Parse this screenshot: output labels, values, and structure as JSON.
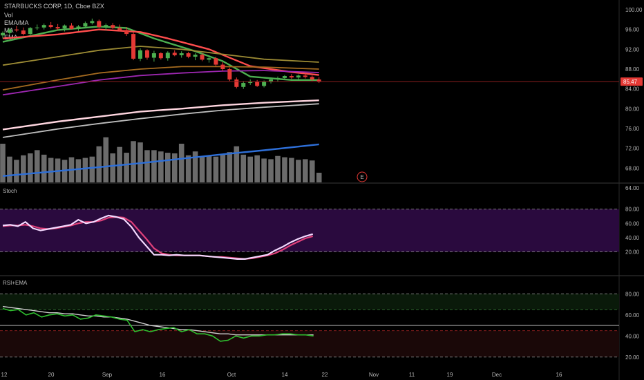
{
  "legend": {
    "title": "STARBUCKS CORP, 1D, Cboe BZX",
    "vol": "Vol",
    "ema_ma": "EMA/MA",
    "ma": "MA",
    "ema": "EMA"
  },
  "colors": {
    "up": "#4caf50",
    "down": "#e53935",
    "ema_red": "#ff4d4d",
    "ema_green": "#4caf50",
    "ma_olive": "#9b8a34",
    "ma_orange": "#a46a1f",
    "ma_purple": "#9c27b0",
    "ma_pink": "#ffd6e0",
    "ma_grey": "#bdbdbd",
    "ma_blue": "#2e6fd8",
    "volume": "#6b6b6b",
    "stoch_k": "#f4d9ff",
    "stoch_d": "#e0407a",
    "stoch_band": "#2a0a3e",
    "rsi": "#2fbf2f",
    "rsi_ema": "#cfcfcf"
  },
  "chart_data": [
    {
      "type": "candlestick",
      "title": "STARBUCKS CORP, 1D, Cboe BZX",
      "ylim": [
        64,
        100
      ],
      "y_ticks": [
        "100.00",
        "96.00",
        "92.00",
        "88.00",
        "84.00",
        "80.00",
        "76.00",
        "72.00",
        "68.00",
        "64.00"
      ],
      "last_price": "85.47",
      "x_ticks": [
        "12",
        "20",
        "Sep",
        "16",
        "Oct",
        "14",
        "22",
        "Nov",
        "11",
        "19",
        "Dec",
        "16"
      ],
      "candles": [
        {
          "o": 94.8,
          "h": 95.6,
          "l": 94.2,
          "c": 95.3
        },
        {
          "o": 95.3,
          "h": 96.3,
          "l": 94.9,
          "c": 96.0
        },
        {
          "o": 96.0,
          "h": 96.7,
          "l": 95.5,
          "c": 95.8
        },
        {
          "o": 95.8,
          "h": 96.4,
          "l": 94.8,
          "c": 95.1
        },
        {
          "o": 95.1,
          "h": 96.5,
          "l": 94.9,
          "c": 96.3
        },
        {
          "o": 96.3,
          "h": 97.0,
          "l": 95.9,
          "c": 96.4
        },
        {
          "o": 96.4,
          "h": 97.2,
          "l": 96.0,
          "c": 96.9
        },
        {
          "o": 96.9,
          "h": 97.5,
          "l": 96.2,
          "c": 96.5
        },
        {
          "o": 96.5,
          "h": 97.1,
          "l": 95.8,
          "c": 96.2
        },
        {
          "o": 96.2,
          "h": 97.0,
          "l": 95.6,
          "c": 96.8
        },
        {
          "o": 96.8,
          "h": 97.3,
          "l": 96.0,
          "c": 96.1
        },
        {
          "o": 96.1,
          "h": 96.9,
          "l": 95.7,
          "c": 96.6
        },
        {
          "o": 96.6,
          "h": 97.6,
          "l": 96.4,
          "c": 97.3
        },
        {
          "o": 97.3,
          "h": 98.2,
          "l": 97.0,
          "c": 97.7
        },
        {
          "o": 97.7,
          "h": 98.0,
          "l": 96.3,
          "c": 96.5
        },
        {
          "o": 96.5,
          "h": 97.2,
          "l": 95.8,
          "c": 96.9
        },
        {
          "o": 96.9,
          "h": 97.3,
          "l": 96.1,
          "c": 96.3
        },
        {
          "o": 96.3,
          "h": 97.0,
          "l": 95.6,
          "c": 95.9
        },
        {
          "o": 95.9,
          "h": 96.5,
          "l": 94.7,
          "c": 95.1
        },
        {
          "o": 95.1,
          "h": 95.4,
          "l": 89.8,
          "c": 90.1
        },
        {
          "o": 90.1,
          "h": 92.2,
          "l": 89.6,
          "c": 91.8
        },
        {
          "o": 91.8,
          "h": 92.0,
          "l": 89.9,
          "c": 90.3
        },
        {
          "o": 90.3,
          "h": 91.7,
          "l": 89.5,
          "c": 91.2
        },
        {
          "o": 91.2,
          "h": 91.4,
          "l": 89.9,
          "c": 90.2
        },
        {
          "o": 90.2,
          "h": 91.6,
          "l": 89.7,
          "c": 91.3
        },
        {
          "o": 91.3,
          "h": 91.8,
          "l": 90.6,
          "c": 90.8
        },
        {
          "o": 90.8,
          "h": 91.6,
          "l": 90.3,
          "c": 91.2
        },
        {
          "o": 91.2,
          "h": 91.5,
          "l": 90.2,
          "c": 90.5
        },
        {
          "o": 90.5,
          "h": 91.2,
          "l": 89.8,
          "c": 90.9
        },
        {
          "o": 90.9,
          "h": 91.2,
          "l": 89.6,
          "c": 89.9
        },
        {
          "o": 89.9,
          "h": 90.6,
          "l": 89.3,
          "c": 90.2
        },
        {
          "o": 90.2,
          "h": 90.5,
          "l": 88.6,
          "c": 88.9
        },
        {
          "o": 88.9,
          "h": 89.4,
          "l": 87.6,
          "c": 88.0
        },
        {
          "o": 88.0,
          "h": 88.3,
          "l": 85.6,
          "c": 85.9
        },
        {
          "o": 85.9,
          "h": 86.3,
          "l": 84.1,
          "c": 84.4
        },
        {
          "o": 84.4,
          "h": 85.6,
          "l": 84.0,
          "c": 85.2
        },
        {
          "o": 85.2,
          "h": 85.9,
          "l": 84.8,
          "c": 85.4
        },
        {
          "o": 85.4,
          "h": 85.8,
          "l": 84.4,
          "c": 84.6
        },
        {
          "o": 84.6,
          "h": 85.7,
          "l": 84.3,
          "c": 85.5
        },
        {
          "o": 85.5,
          "h": 86.3,
          "l": 85.1,
          "c": 85.9
        },
        {
          "o": 85.9,
          "h": 86.5,
          "l": 85.4,
          "c": 86.2
        },
        {
          "o": 86.2,
          "h": 86.8,
          "l": 85.8,
          "c": 86.6
        },
        {
          "o": 86.6,
          "h": 87.0,
          "l": 86.0,
          "c": 86.3
        },
        {
          "o": 86.3,
          "h": 86.9,
          "l": 85.7,
          "c": 86.7
        },
        {
          "o": 86.7,
          "h": 87.1,
          "l": 86.1,
          "c": 86.4
        },
        {
          "o": 86.4,
          "h": 86.7,
          "l": 85.6,
          "c": 85.9
        },
        {
          "o": 85.9,
          "h": 86.4,
          "l": 85.2,
          "c": 85.5
        }
      ],
      "volume": [
        6.0,
        4.0,
        3.5,
        4.2,
        4.5,
        5.0,
        4.3,
        3.8,
        3.7,
        3.5,
        3.9,
        3.6,
        3.8,
        4.0,
        5.6,
        7.0,
        4.5,
        5.5,
        4.6,
        6.4,
        6.2,
        5.0,
        5.0,
        4.8,
        4.6,
        4.5,
        6.0,
        4.2,
        4.8,
        4.0,
        4.1,
        4.0,
        4.4,
        4.7,
        5.6,
        4.3,
        4.0,
        4.2,
        3.7,
        3.6,
        4.1,
        3.9,
        3.8,
        3.5,
        3.6,
        3.4,
        1.5
      ],
      "overlays": [
        {
          "name": "EMA short",
          "color": "#4caf50",
          "points": [
            [
              0,
              93.5
            ],
            [
              8,
              95.9
            ],
            [
              14,
              96.6
            ],
            [
              18,
              96.3
            ],
            [
              22,
              94.2
            ],
            [
              28,
              91.6
            ],
            [
              32,
              89.6
            ],
            [
              36,
              86.5
            ],
            [
              42,
              85.8
            ],
            [
              46,
              85.8
            ]
          ]
        },
        {
          "name": "EMA medium",
          "color": "#ff4d4d",
          "points": [
            [
              0,
              94.2
            ],
            [
              8,
              95.0
            ],
            [
              14,
              96.0
            ],
            [
              20,
              95.5
            ],
            [
              24,
              94.2
            ],
            [
              30,
              92.0
            ],
            [
              36,
              88.6
            ],
            [
              42,
              87.4
            ],
            [
              46,
              86.8
            ]
          ]
        },
        {
          "name": "MA olive",
          "color": "#9b8a34",
          "points": [
            [
              0,
              88.8
            ],
            [
              8,
              90.5
            ],
            [
              14,
              91.8
            ],
            [
              20,
              92.6
            ],
            [
              26,
              92.0
            ],
            [
              32,
              91.0
            ],
            [
              38,
              90.0
            ],
            [
              46,
              89.4
            ]
          ]
        },
        {
          "name": "MA orange",
          "color": "#a46a1f",
          "points": [
            [
              0,
              83.8
            ],
            [
              8,
              85.8
            ],
            [
              14,
              87.2
            ],
            [
              20,
              88.0
            ],
            [
              26,
              88.5
            ],
            [
              32,
              88.5
            ],
            [
              38,
              88.4
            ],
            [
              46,
              88.0
            ]
          ]
        },
        {
          "name": "MA purple",
          "color": "#9c27b0",
          "points": [
            [
              0,
              82.8
            ],
            [
              8,
              84.5
            ],
            [
              14,
              85.8
            ],
            [
              20,
              86.7
            ],
            [
              26,
              87.2
            ],
            [
              32,
              87.6
            ],
            [
              38,
              87.7
            ],
            [
              46,
              87.3
            ]
          ]
        },
        {
          "name": "MA pink",
          "color": "#ffd6e0",
          "points": [
            [
              0,
              75.8
            ],
            [
              8,
              77.4
            ],
            [
              14,
              78.4
            ],
            [
              20,
              79.4
            ],
            [
              26,
              80.0
            ],
            [
              32,
              80.7
            ],
            [
              38,
              81.2
            ],
            [
              46,
              81.7
            ]
          ]
        },
        {
          "name": "MA grey",
          "color": "#bdbdbd",
          "points": [
            [
              0,
              74.2
            ],
            [
              8,
              75.9
            ],
            [
              14,
              77.0
            ],
            [
              20,
              78.0
            ],
            [
              26,
              78.9
            ],
            [
              32,
              79.7
            ],
            [
              38,
              80.3
            ],
            [
              46,
              81.0
            ]
          ]
        },
        {
          "name": "MA blue",
          "color": "#2e6fd8",
          "points": [
            [
              0,
              66.4
            ],
            [
              8,
              67.4
            ],
            [
              14,
              68.2
            ],
            [
              20,
              69.0
            ],
            [
              26,
              69.9
            ],
            [
              32,
              70.8
            ],
            [
              38,
              71.6
            ],
            [
              46,
              72.8
            ]
          ]
        }
      ]
    },
    {
      "type": "line",
      "title": "Stoch",
      "ylim": [
        0,
        100
      ],
      "y_ticks": [
        "80.00",
        "60.00",
        "40.00",
        "20.00"
      ],
      "band": [
        20,
        80
      ],
      "series": [
        {
          "color": "#f4d9ff",
          "values": [
            57,
            58,
            56,
            62,
            53,
            50,
            52,
            54,
            56,
            58,
            65,
            60,
            62,
            67,
            71,
            69,
            66,
            55,
            40,
            28,
            16,
            16,
            15,
            16,
            15,
            15,
            15,
            14,
            13,
            12,
            11,
            10,
            10,
            12,
            14,
            16,
            22,
            27,
            33,
            38,
            42,
            45
          ]
        },
        {
          "color": "#e0407a",
          "values": [
            56,
            57,
            57,
            58,
            56,
            53,
            52,
            53,
            55,
            57,
            60,
            62,
            62,
            64,
            68,
            69,
            68,
            62,
            50,
            38,
            25,
            18,
            16,
            15,
            15,
            15,
            15,
            14,
            13,
            13,
            12,
            11,
            10,
            11,
            13,
            15,
            18,
            23,
            29,
            34,
            39,
            42
          ]
        }
      ]
    },
    {
      "type": "line",
      "title": "RSI+EMA",
      "ylim": [
        10,
        90
      ],
      "y_ticks": [
        "80.00",
        "60.00",
        "40.00",
        "20.00"
      ],
      "guides": [
        80,
        65,
        50,
        45,
        20
      ],
      "series": [
        {
          "color": "#2fbf2f",
          "values": [
            66,
            64,
            65,
            60,
            62,
            58,
            60,
            61,
            59,
            60,
            56,
            57,
            60,
            59,
            58,
            56,
            55,
            44,
            46,
            44,
            46,
            47,
            48,
            44,
            46,
            42,
            42,
            40,
            35,
            36,
            40,
            38,
            40,
            40,
            41,
            41,
            42,
            42,
            41,
            41,
            40
          ]
        },
        {
          "color": "#cfcfcf",
          "values": [
            68,
            67,
            66,
            65,
            64,
            63,
            62,
            62,
            61,
            61,
            60,
            59,
            59,
            58,
            58,
            57,
            56,
            54,
            52,
            50,
            49,
            48,
            47,
            46,
            46,
            45,
            44,
            43,
            42,
            42,
            41,
            41,
            41,
            41,
            41,
            41,
            41,
            41,
            41,
            41,
            41
          ]
        }
      ]
    }
  ]
}
